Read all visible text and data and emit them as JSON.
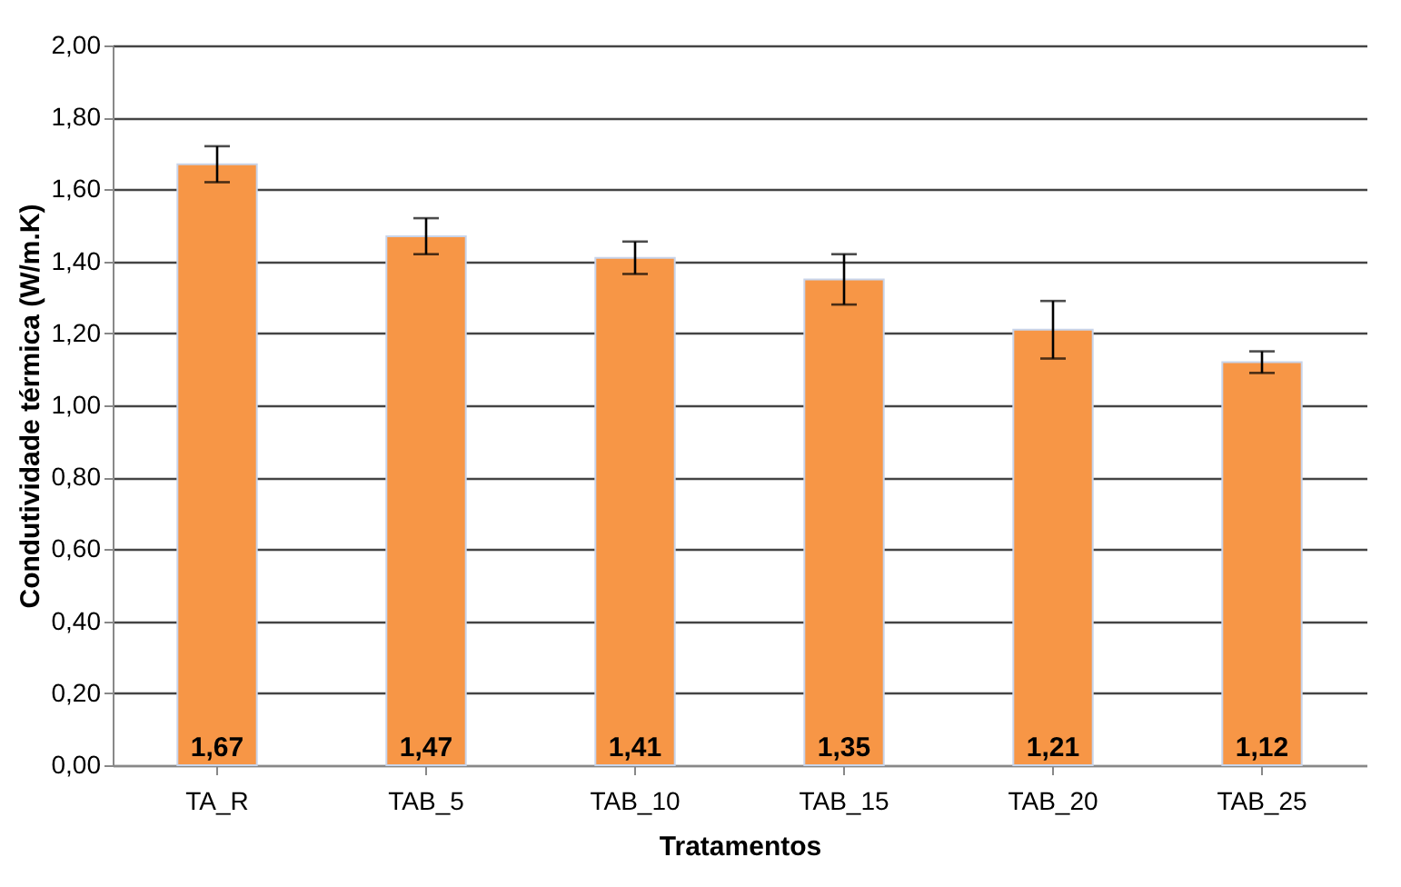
{
  "chart_data": {
    "type": "bar",
    "xlabel": "Tratamentos",
    "ylabel": "Condutividade térmica (W/m.K)",
    "categories": [
      "TA_R",
      "TAB_5",
      "TAB_10",
      "TAB_15",
      "TAB_20",
      "TAB_25"
    ],
    "values": [
      1.67,
      1.47,
      1.41,
      1.35,
      1.21,
      1.12
    ],
    "value_labels": [
      "1,67",
      "1,47",
      "1,41",
      "1,35",
      "1,21",
      "1,12"
    ],
    "errors": [
      0.05,
      0.05,
      0.045,
      0.07,
      0.08,
      0.03
    ],
    "color": "#f79646",
    "ylim": [
      0,
      2
    ],
    "yticks": [
      {
        "value": 0,
        "label": "0,00"
      },
      {
        "value": 0.2,
        "label": "0,20"
      },
      {
        "value": 0.4,
        "label": "0,40"
      },
      {
        "value": 0.6,
        "label": "0,60"
      },
      {
        "value": 0.8,
        "label": "0,80"
      },
      {
        "value": 1.0,
        "label": "1,00"
      },
      {
        "value": 1.2,
        "label": "1,20"
      },
      {
        "value": 1.4,
        "label": "1,40"
      },
      {
        "value": 1.6,
        "label": "1,60"
      },
      {
        "value": 1.8,
        "label": "1,80"
      },
      {
        "value": 2.0,
        "label": "2,00"
      }
    ],
    "grid": "y"
  }
}
